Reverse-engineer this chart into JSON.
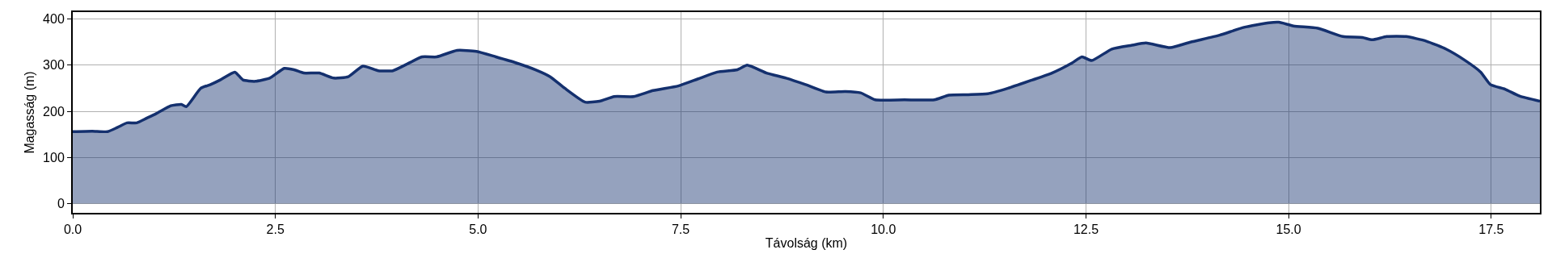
{
  "chart_data": {
    "type": "area",
    "xlabel": "Távolság (km)",
    "ylabel": "Magasság (m)",
    "x": [
      0,
      0.24,
      0.43,
      0.55,
      0.67,
      0.79,
      0.91,
      1.03,
      1.21,
      1.34,
      1.4,
      1.58,
      1.7,
      1.82,
      2.0,
      2.1,
      2.25,
      2.43,
      2.61,
      2.73,
      2.85,
      3.04,
      3.22,
      3.4,
      3.58,
      3.77,
      3.95,
      4.13,
      4.31,
      4.49,
      4.74,
      4.98,
      5.22,
      5.47,
      5.71,
      5.89,
      6.07,
      6.32,
      6.5,
      6.68,
      6.92,
      7.16,
      7.47,
      7.71,
      7.95,
      8.2,
      8.32,
      8.56,
      8.8,
      9.04,
      9.29,
      9.53,
      9.72,
      9.9,
      10.26,
      10.63,
      10.81,
      11.05,
      11.29,
      11.54,
      11.84,
      12.08,
      12.33,
      12.45,
      12.57,
      12.82,
      13.06,
      13.24,
      13.54,
      13.79,
      14.15,
      14.45,
      14.76,
      14.88,
      15.06,
      15.36,
      15.67,
      15.91,
      16.03,
      16.21,
      16.45,
      16.7,
      16.94,
      17.18,
      17.37,
      17.49,
      17.67,
      17.85,
      18.1
    ],
    "series": [
      {
        "color": "#14306e",
        "values": [
          156,
          157,
          156,
          165,
          175,
          175,
          185,
          195,
          212,
          215,
          210,
          250,
          258,
          268,
          285,
          268,
          265,
          272,
          293,
          290,
          283,
          283,
          272,
          275,
          298,
          288,
          288,
          303,
          318,
          318,
          332,
          330,
          318,
          305,
          290,
          275,
          250,
          220,
          222,
          232,
          232,
          245,
          255,
          270,
          285,
          290,
          300,
          283,
          272,
          258,
          242,
          243,
          240,
          225,
          225,
          225,
          235,
          236,
          238,
          250,
          268,
          283,
          305,
          318,
          310,
          335,
          343,
          348,
          338,
          350,
          365,
          382,
          392,
          393,
          385,
          380,
          362,
          360,
          355,
          362,
          362,
          352,
          335,
          310,
          285,
          258,
          248,
          233,
          222
        ]
      }
    ],
    "xlim": [
      0,
      18.1
    ],
    "ylim": [
      -20,
      415
    ],
    "xticks": [
      {
        "value": 0,
        "label": "0.0"
      },
      2.5,
      {
        "value": 5,
        "label": "5.0"
      },
      7.5,
      {
        "value": 10,
        "label": "10.0"
      },
      12.5,
      {
        "value": 15,
        "label": "15.0"
      },
      17.5
    ],
    "yticks": [
      0,
      100,
      200,
      300,
      400
    ],
    "grid": true,
    "marker": "none",
    "line_style": "solid"
  }
}
